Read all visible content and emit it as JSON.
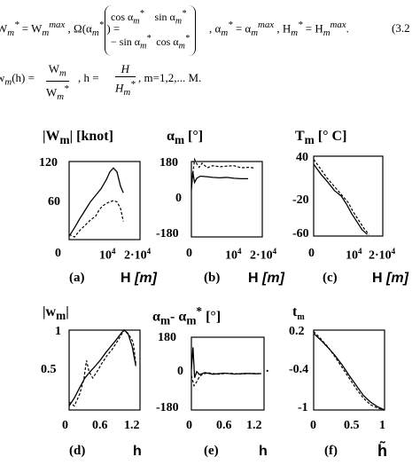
{
  "equations": {
    "line1": {
      "a": "W",
      "a_sub": "m",
      "a_sup": "*",
      "b": " = W",
      "b_sub": "m",
      "b_sup": "max",
      "c": ",  Ω(α",
      "c_sub": "m",
      "c_sup": "*",
      "d": ") = ",
      "m11": "cos α",
      "m12": "sin α",
      "m21": "− sin α",
      "m22": "cos α",
      "msub": "m",
      "msup": "*",
      "e": ",    α",
      "e2": " = α",
      "e_sup2": "max",
      "f": ",   H",
      "f2": " = H",
      "f_sup2": "max",
      "end": ".",
      "number": "(3.2"
    },
    "line2": {
      "a": "w",
      "a_sub": "m",
      "b": "(h) = ",
      "num": "W",
      "num_sub": "m",
      "den": "W",
      "den_sub": "m",
      "den_sup": "*",
      "c": ",  h = ",
      "hnum": "H",
      "hden": "H",
      "hden_sub": "m",
      "hden_sup": "*",
      "d": ",   m=1,2,... M."
    }
  },
  "panels": [
    {
      "id": "a",
      "title": "|W",
      "title_sub": "m",
      "title_end": "|  [knot]",
      "tag": "(a)",
      "xlabel": "H",
      "xlabel_unit": "[m]",
      "yticks": [
        "120",
        "60",
        "0"
      ],
      "xticks": [
        "0",
        "10",
        "2·10"
      ],
      "xtick_sup": "4",
      "chart_data": {
        "type": "line",
        "xlim": [
          0,
          20000
        ],
        "ylim": [
          0,
          120
        ],
        "series": [
          {
            "style": "solid",
            "points": [
              [
                0,
                5
              ],
              [
                1500,
                18
              ],
              [
                3000,
                32
              ],
              [
                4500,
                45
              ],
              [
                6000,
                58
              ],
              [
                7500,
                68
              ],
              [
                9000,
                78
              ],
              [
                10500,
                92
              ],
              [
                11500,
                104
              ],
              [
                12500,
                110
              ],
              [
                13500,
                104
              ],
              [
                14500,
                82
              ],
              [
                15300,
                72
              ]
            ]
          },
          {
            "style": "dashed",
            "points": [
              [
                0,
                8
              ],
              [
                1500,
                4
              ],
              [
                3000,
                14
              ],
              [
                4500,
                22
              ],
              [
                6000,
                30
              ],
              [
                7500,
                36
              ],
              [
                8500,
                46
              ],
              [
                9500,
                52
              ],
              [
                11000,
                57
              ],
              [
                12500,
                60
              ],
              [
                13500,
                58
              ],
              [
                14500,
                48
              ],
              [
                15300,
                28
              ]
            ]
          }
        ]
      }
    },
    {
      "id": "b",
      "title": "α",
      "title_sub": "m",
      "title_end": "  [°]",
      "tag": "(b)",
      "xlabel": "H",
      "xlabel_unit": "[m]",
      "yticks": [
        "180",
        "0",
        "-180"
      ],
      "xticks": [
        "0",
        "10",
        "2·10"
      ],
      "xtick_sup": "4",
      "chart_data": {
        "type": "line",
        "xlim": [
          0,
          20000
        ],
        "ylim": [
          -180,
          180
        ],
        "series": [
          {
            "style": "solid",
            "points": [
              [
                0,
                45
              ],
              [
                400,
                130
              ],
              [
                900,
                80
              ],
              [
                1500,
                100
              ],
              [
                2500,
                110
              ],
              [
                4000,
                108
              ],
              [
                6000,
                104
              ],
              [
                8000,
                102
              ],
              [
                10000,
                104
              ],
              [
                12000,
                100
              ],
              [
                14000,
                98
              ],
              [
                16000,
                98
              ]
            ]
          },
          {
            "style": "dashed",
            "points": [
              [
                0,
                60
              ],
              [
                400,
                120
              ],
              [
                900,
                190
              ],
              [
                1500,
                170
              ],
              [
                2200,
                152
              ],
              [
                3000,
                172
              ],
              [
                4500,
                150
              ],
              [
                6000,
                160
              ],
              [
                8000,
                155
              ],
              [
                10000,
                158
              ],
              [
                12000,
                160
              ],
              [
                14000,
                150
              ],
              [
                16000,
                152
              ],
              [
                17500,
                150
              ]
            ]
          }
        ]
      }
    },
    {
      "id": "c",
      "title": "T",
      "title_sub": "m",
      "title_end": "  [° C]",
      "tag": "(c)",
      "xlabel": "H",
      "xlabel_unit": "[m]",
      "yticks": [
        "40",
        "-20",
        "-60"
      ],
      "xticks": [
        "0",
        "10",
        "2·10"
      ],
      "xtick_sup": "4",
      "chart_data": {
        "type": "line",
        "xlim": [
          0,
          20000
        ],
        "ylim": [
          -60,
          40
        ],
        "series": [
          {
            "style": "solid",
            "points": [
              [
                0,
                30
              ],
              [
                2000,
                18
              ],
              [
                4000,
                8
              ],
              [
                6000,
                -3
              ],
              [
                8000,
                -10
              ],
              [
                9500,
                -20
              ],
              [
                11000,
                -32
              ],
              [
                12500,
                -42
              ],
              [
                14000,
                -52
              ],
              [
                15500,
                -58
              ]
            ]
          },
          {
            "style": "dashed",
            "points": [
              [
                0,
                36
              ],
              [
                2000,
                24
              ],
              [
                4000,
                12
              ],
              [
                6000,
                2
              ],
              [
                8000,
                -8
              ],
              [
                10000,
                -18
              ],
              [
                11500,
                -30
              ],
              [
                13000,
                -40
              ],
              [
                14500,
                -50
              ],
              [
                16000,
                -58
              ]
            ]
          }
        ]
      }
    },
    {
      "id": "d",
      "title": "|w",
      "title_sub": "m",
      "title_end": "|",
      "tag": "(d)",
      "xlabel": "h",
      "xlabel_unit": "",
      "yticks": [
        "1",
        "0.5",
        "0"
      ],
      "xticks": [
        "0",
        "0.6",
        "1.2"
      ],
      "xtick_sup": "",
      "chart_data": {
        "type": "line",
        "xlim": [
          0,
          1.35
        ],
        "ylim": [
          0,
          1
        ],
        "series": [
          {
            "style": "solid",
            "points": [
              [
                0,
                0.05
              ],
              [
                0.1,
                0.15
              ],
              [
                0.2,
                0.28
              ],
              [
                0.3,
                0.4
              ],
              [
                0.4,
                0.48
              ],
              [
                0.5,
                0.55
              ],
              [
                0.6,
                0.63
              ],
              [
                0.7,
                0.72
              ],
              [
                0.8,
                0.8
              ],
              [
                0.9,
                0.88
              ],
              [
                1.0,
                0.97
              ],
              [
                1.05,
                1.0
              ],
              [
                1.12,
                0.96
              ],
              [
                1.2,
                0.8
              ],
              [
                1.27,
                0.55
              ]
            ]
          },
          {
            "style": "dashed",
            "points": [
              [
                0,
                0.1
              ],
              [
                0.1,
                0.05
              ],
              [
                0.2,
                0.2
              ],
              [
                0.28,
                0.38
              ],
              [
                0.33,
                0.62
              ],
              [
                0.38,
                0.48
              ],
              [
                0.45,
                0.4
              ],
              [
                0.55,
                0.5
              ],
              [
                0.62,
                0.58
              ],
              [
                0.72,
                0.68
              ],
              [
                0.82,
                0.76
              ],
              [
                0.92,
                0.86
              ],
              [
                1.0,
                0.95
              ],
              [
                1.05,
                1.0
              ],
              [
                1.15,
                0.93
              ],
              [
                1.22,
                0.85
              ],
              [
                1.27,
                0.58
              ]
            ]
          }
        ]
      }
    },
    {
      "id": "e",
      "title": "α",
      "title_sub": "m",
      "title_mid": "- α",
      "title_sub2": "m",
      "title_sup2": "*",
      "title_end": "  [°]",
      "tag": "(e)",
      "xlabel": "h",
      "xlabel_unit": "",
      "yticks": [
        "180",
        "0",
        "-180"
      ],
      "xticks": [
        "0",
        "0.6",
        "1.2"
      ],
      "xtick_sup": "",
      "chart_data": {
        "type": "line",
        "xlim": [
          0,
          1.35
        ],
        "ylim": [
          -180,
          180
        ],
        "series": [
          {
            "style": "solid",
            "points": [
              [
                0,
                20
              ],
              [
                0.03,
                130
              ],
              [
                0.06,
                -20
              ],
              [
                0.1,
                10
              ],
              [
                0.15,
                -5
              ],
              [
                0.25,
                5
              ],
              [
                0.4,
                -3
              ],
              [
                0.6,
                2
              ],
              [
                0.8,
                -2
              ],
              [
                1.0,
                1
              ],
              [
                1.2,
                -1
              ],
              [
                1.3,
                0
              ]
            ]
          },
          {
            "style": "dashed",
            "points": [
              [
                0,
                -10
              ],
              [
                0.05,
                -60
              ],
              [
                0.1,
                -40
              ],
              [
                0.15,
                -15
              ],
              [
                0.2,
                -5
              ],
              [
                0.3,
                4
              ],
              [
                0.5,
                -3
              ],
              [
                0.7,
                2
              ],
              [
                0.9,
                -2
              ],
              [
                1.1,
                1
              ],
              [
                1.3,
                0
              ]
            ]
          }
        ]
      }
    },
    {
      "id": "f",
      "title": "t",
      "title_sub": "m",
      "title_end": "",
      "tag": "(f)",
      "xlabel": "h̃",
      "xlabel_unit": "",
      "yticks": [
        "0.2",
        "-0.4",
        "-1"
      ],
      "xticks": [
        "0",
        "0.5",
        "1"
      ],
      "xtick_sup": "",
      "chart_data": {
        "type": "line",
        "xlim": [
          0,
          1
        ],
        "ylim": [
          -1,
          0.2
        ],
        "series": [
          {
            "style": "solid",
            "points": [
              [
                0,
                0.15
              ],
              [
                0.1,
                0.05
              ],
              [
                0.2,
                -0.06
              ],
              [
                0.3,
                -0.18
              ],
              [
                0.4,
                -0.32
              ],
              [
                0.5,
                -0.48
              ],
              [
                0.6,
                -0.63
              ],
              [
                0.7,
                -0.78
              ],
              [
                0.8,
                -0.88
              ],
              [
                0.9,
                -0.95
              ],
              [
                1.0,
                -1.0
              ]
            ]
          },
          {
            "style": "dashed",
            "points": [
              [
                0,
                0.18
              ],
              [
                0.1,
                0.07
              ],
              [
                0.2,
                -0.05
              ],
              [
                0.3,
                -0.2
              ],
              [
                0.4,
                -0.36
              ],
              [
                0.5,
                -0.52
              ],
              [
                0.6,
                -0.68
              ],
              [
                0.7,
                -0.82
              ],
              [
                0.8,
                -0.92
              ],
              [
                0.9,
                -0.97
              ],
              [
                1.0,
                -1.0
              ]
            ]
          }
        ]
      }
    }
  ],
  "dot": "."
}
